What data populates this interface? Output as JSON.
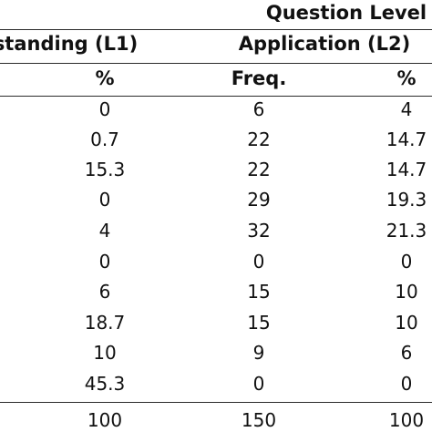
{
  "header": {
    "question_level": "Question Level",
    "understanding": "standing (L1)",
    "application": "Application (L2)",
    "col_pct_l1": "%",
    "col_freq_l2": "Freq.",
    "col_pct_l2": "%"
  },
  "rows": [
    {
      "pct_l1": "0",
      "freq_l2": "6",
      "pct_l2": "4"
    },
    {
      "pct_l1": "0.7",
      "freq_l2": "22",
      "pct_l2": "14.7"
    },
    {
      "pct_l1": "15.3",
      "freq_l2": "22",
      "pct_l2": "14.7"
    },
    {
      "pct_l1": "0",
      "freq_l2": "29",
      "pct_l2": "19.3"
    },
    {
      "pct_l1": "4",
      "freq_l2": "32",
      "pct_l2": "21.3"
    },
    {
      "pct_l1": "0",
      "freq_l2": "0",
      "pct_l2": "0"
    },
    {
      "pct_l1": "6",
      "freq_l2": "15",
      "pct_l2": "10"
    },
    {
      "pct_l1": "18.7",
      "freq_l2": "15",
      "pct_l2": "10"
    },
    {
      "pct_l1": "10",
      "freq_l2": "9",
      "pct_l2": "6"
    },
    {
      "pct_l1": "45.3",
      "freq_l2": "0",
      "pct_l2": "0"
    }
  ],
  "total": {
    "pct_l1": "100",
    "freq_l2": "150",
    "pct_l2": "100"
  }
}
